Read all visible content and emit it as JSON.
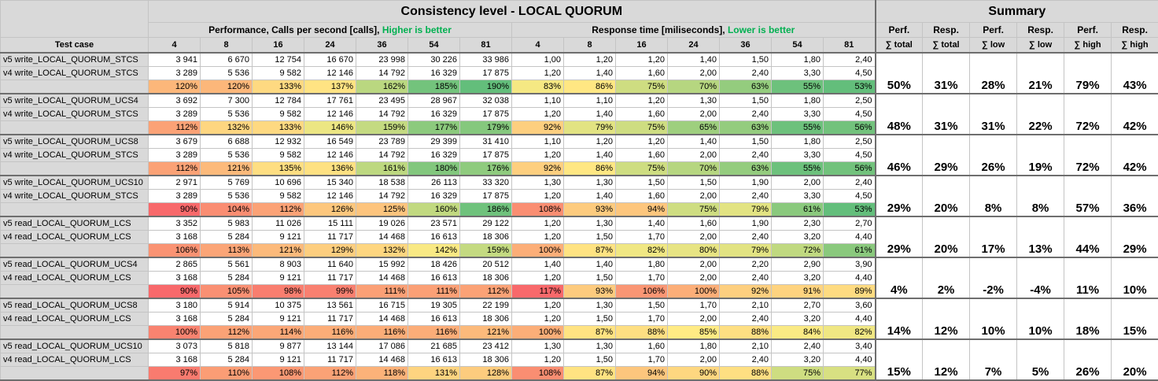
{
  "header": {
    "title": "Consistency level - LOCAL QUORUM",
    "summary_title": "Summary",
    "perf_label": "Performance, Calls per second [calls], ",
    "perf_note": "Higher is better",
    "resp_label": "Response time [miliseconds], ",
    "resp_note": "Lower is better",
    "test_case": "Test case",
    "thread_counts": [
      "4",
      "8",
      "16",
      "24",
      "36",
      "54",
      "81"
    ],
    "summary_top": [
      "Perf.",
      "Resp.",
      "Perf.",
      "Resp.",
      "Perf.",
      "Resp."
    ],
    "summary_bottom": [
      "∑ total",
      "∑ total",
      "∑ low",
      "∑ low",
      "∑ high",
      "∑ high"
    ]
  },
  "colors": {
    "good": "#00b050",
    "bad": "#ff0000",
    "header_bg": "#d9d9d9"
  },
  "groups": [
    {
      "rows": [
        {
          "name": "v5 write_LOCAL_QUORUM_STCS",
          "perf": [
            "3 941",
            "6 670",
            "12 754",
            "16 670",
            "23 998",
            "30 226",
            "33 986"
          ],
          "resp": [
            "1,00",
            "1,20",
            "1,20",
            "1,40",
            "1,50",
            "1,80",
            "2,40"
          ]
        },
        {
          "name": "v4 write_LOCAL_QUORUM_STCS",
          "perf": [
            "3 289",
            "5 536",
            "9 582",
            "12 146",
            "14 792",
            "16 329",
            "17 875"
          ],
          "resp": [
            "1,20",
            "1,40",
            "1,60",
            "2,00",
            "2,40",
            "3,30",
            "4,50"
          ]
        }
      ],
      "pct_perf": [
        120,
        120,
        133,
        137,
        162,
        185,
        190
      ],
      "pct_resp": [
        83,
        86,
        75,
        70,
        63,
        55,
        53
      ],
      "summary": [
        "50%",
        "31%",
        "28%",
        "21%",
        "79%",
        "43%"
      ]
    },
    {
      "rows": [
        {
          "name": "v5 write_LOCAL_QUORUM_UCS4",
          "perf": [
            "3 692",
            "7 300",
            "12 784",
            "17 761",
            "23 495",
            "28 967",
            "32 038"
          ],
          "resp": [
            "1,10",
            "1,10",
            "1,20",
            "1,30",
            "1,50",
            "1,80",
            "2,50"
          ]
        },
        {
          "name": "v4 write_LOCAL_QUORUM_STCS",
          "perf": [
            "3 289",
            "5 536",
            "9 582",
            "12 146",
            "14 792",
            "16 329",
            "17 875"
          ],
          "resp": [
            "1,20",
            "1,40",
            "1,60",
            "2,00",
            "2,40",
            "3,30",
            "4,50"
          ]
        }
      ],
      "pct_perf": [
        112,
        132,
        133,
        146,
        159,
        177,
        179
      ],
      "pct_resp": [
        92,
        79,
        75,
        65,
        63,
        55,
        56
      ],
      "summary": [
        "48%",
        "31%",
        "31%",
        "22%",
        "72%",
        "42%"
      ]
    },
    {
      "rows": [
        {
          "name": "v5 write_LOCAL_QUORUM_UCS8",
          "perf": [
            "3 679",
            "6 688",
            "12 932",
            "16 549",
            "23 789",
            "29 399",
            "31 410"
          ],
          "resp": [
            "1,10",
            "1,20",
            "1,20",
            "1,40",
            "1,50",
            "1,80",
            "2,50"
          ]
        },
        {
          "name": "v4 write_LOCAL_QUORUM_STCS",
          "perf": [
            "3 289",
            "5 536",
            "9 582",
            "12 146",
            "14 792",
            "16 329",
            "17 875"
          ],
          "resp": [
            "1,20",
            "1,40",
            "1,60",
            "2,00",
            "2,40",
            "3,30",
            "4,50"
          ]
        }
      ],
      "pct_perf": [
        112,
        121,
        135,
        136,
        161,
        180,
        176
      ],
      "pct_resp": [
        92,
        86,
        75,
        70,
        63,
        55,
        56
      ],
      "summary": [
        "46%",
        "29%",
        "26%",
        "19%",
        "72%",
        "42%"
      ]
    },
    {
      "rows": [
        {
          "name": "v5 write_LOCAL_QUORUM_UCS10",
          "perf": [
            "2 971",
            "5 769",
            "10 696",
            "15 340",
            "18 538",
            "26 113",
            "33 320"
          ],
          "resp": [
            "1,30",
            "1,30",
            "1,50",
            "1,50",
            "1,90",
            "2,00",
            "2,40"
          ]
        },
        {
          "name": "v4 write_LOCAL_QUORUM_STCS",
          "perf": [
            "3 289",
            "5 536",
            "9 582",
            "12 146",
            "14 792",
            "16 329",
            "17 875"
          ],
          "resp": [
            "1,20",
            "1,40",
            "1,60",
            "2,00",
            "2,40",
            "3,30",
            "4,50"
          ]
        }
      ],
      "pct_perf": [
        90,
        104,
        112,
        126,
        125,
        160,
        186
      ],
      "pct_resp": [
        108,
        93,
        94,
        75,
        79,
        61,
        53
      ],
      "summary": [
        "29%",
        "20%",
        "8%",
        "8%",
        "57%",
        "36%"
      ]
    },
    {
      "rows": [
        {
          "name": "v5 read_LOCAL_QUORUM_LCS",
          "perf": [
            "3 352",
            "5 983",
            "11 026",
            "15 111",
            "19 026",
            "23 571",
            "29 122"
          ],
          "resp": [
            "1,20",
            "1,30",
            "1,40",
            "1,60",
            "1,90",
            "2,30",
            "2,70"
          ]
        },
        {
          "name": "v4 read_LOCAL_QUORUM_LCS",
          "perf": [
            "3 168",
            "5 284",
            "9 121",
            "11 717",
            "14 468",
            "16 613",
            "18 306"
          ],
          "resp": [
            "1,20",
            "1,50",
            "1,70",
            "2,00",
            "2,40",
            "3,20",
            "4,40"
          ]
        }
      ],
      "pct_perf": [
        106,
        113,
        121,
        129,
        132,
        142,
        159
      ],
      "pct_resp": [
        100,
        87,
        82,
        80,
        79,
        72,
        61
      ],
      "summary": [
        "29%",
        "20%",
        "17%",
        "13%",
        "44%",
        "29%"
      ]
    },
    {
      "rows": [
        {
          "name": "v5 read_LOCAL_QUORUM_UCS4",
          "perf": [
            "2 865",
            "5 561",
            "8 903",
            "11 640",
            "15 992",
            "18 426",
            "20 512"
          ],
          "resp": [
            "1,40",
            "1,40",
            "1,80",
            "2,00",
            "2,20",
            "2,90",
            "3,90"
          ]
        },
        {
          "name": "v4 read_LOCAL_QUORUM_LCS",
          "perf": [
            "3 168",
            "5 284",
            "9 121",
            "11 717",
            "14 468",
            "16 613",
            "18 306"
          ],
          "resp": [
            "1,20",
            "1,50",
            "1,70",
            "2,00",
            "2,40",
            "3,20",
            "4,40"
          ]
        }
      ],
      "pct_perf": [
        90,
        105,
        98,
        99,
        111,
        111,
        112
      ],
      "pct_resp": [
        117,
        93,
        106,
        100,
        92,
        91,
        89
      ],
      "summary": [
        "4%",
        "2%",
        "-2%",
        "-4%",
        "11%",
        "10%"
      ]
    },
    {
      "rows": [
        {
          "name": "v5 read_LOCAL_QUORUM_UCS8",
          "perf": [
            "3 180",
            "5 914",
            "10 375",
            "13 561",
            "16 715",
            "19 305",
            "22 199"
          ],
          "resp": [
            "1,20",
            "1,30",
            "1,50",
            "1,70",
            "2,10",
            "2,70",
            "3,60"
          ]
        },
        {
          "name": "v4 read_LOCAL_QUORUM_LCS",
          "perf": [
            "3 168",
            "5 284",
            "9 121",
            "11 717",
            "14 468",
            "16 613",
            "18 306"
          ],
          "resp": [
            "1,20",
            "1,50",
            "1,70",
            "2,00",
            "2,40",
            "3,20",
            "4,40"
          ]
        }
      ],
      "pct_perf": [
        100,
        112,
        114,
        116,
        116,
        116,
        121
      ],
      "pct_resp": [
        100,
        87,
        88,
        85,
        88,
        84,
        82
      ],
      "summary": [
        "14%",
        "12%",
        "10%",
        "10%",
        "18%",
        "15%"
      ]
    },
    {
      "rows": [
        {
          "name": "v5 read_LOCAL_QUORUM_UCS10",
          "perf": [
            "3 073",
            "5 818",
            "9 877",
            "13 144",
            "17 086",
            "21 685",
            "23 412"
          ],
          "resp": [
            "1,30",
            "1,30",
            "1,60",
            "1,80",
            "2,10",
            "2,40",
            "3,40"
          ]
        },
        {
          "name": "v4 read_LOCAL_QUORUM_LCS",
          "perf": [
            "3 168",
            "5 284",
            "9 121",
            "11 717",
            "14 468",
            "16 613",
            "18 306"
          ],
          "resp": [
            "1,20",
            "1,50",
            "1,70",
            "2,00",
            "2,40",
            "3,20",
            "4,40"
          ]
        }
      ],
      "pct_perf": [
        97,
        110,
        108,
        112,
        118,
        131,
        128
      ],
      "pct_resp": [
        108,
        87,
        94,
        90,
        88,
        75,
        77
      ],
      "summary": [
        "15%",
        "12%",
        "7%",
        "5%",
        "26%",
        "20%"
      ]
    }
  ]
}
